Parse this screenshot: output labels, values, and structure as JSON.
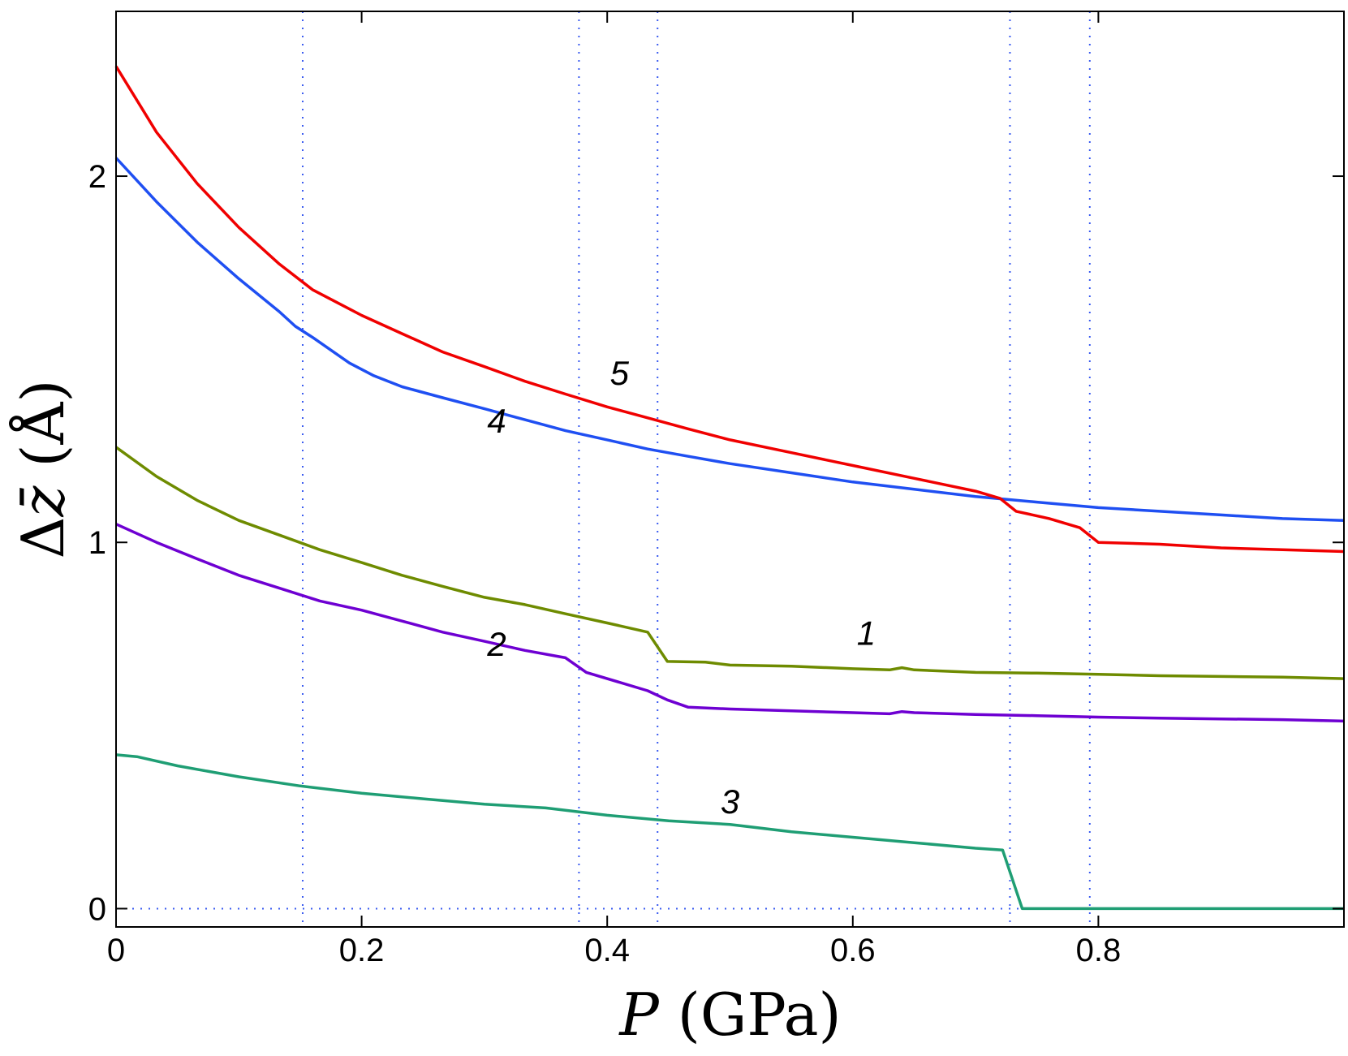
{
  "chart_data": {
    "type": "line",
    "title": "",
    "xlabel": {
      "var": "P",
      "unit": " (GPa)"
    },
    "ylabel": {
      "symbol": "Δ",
      "var": "z̄",
      "unit": " (Å)"
    },
    "xlim": [
      0,
      1.0
    ],
    "ylim": [
      -0.05,
      2.45
    ],
    "xticks": [
      0,
      0.2,
      0.4,
      0.6,
      0.8
    ],
    "xtick_labels": [
      "0",
      "0.2",
      "0.4",
      "0.6",
      "0.8"
    ],
    "yticks": [
      0,
      1,
      2
    ],
    "ytick_labels": [
      "0",
      "1",
      "2"
    ],
    "vlines": [
      0.152,
      0.377,
      0.441,
      0.728,
      0.793
    ],
    "hline": 0,
    "grid": false,
    "series": [
      {
        "name": "1",
        "label_at": [
          0.611,
          0.72
        ],
        "color": "#6e8b00",
        "x": [
          0,
          0.033,
          0.066,
          0.1,
          0.133,
          0.166,
          0.2,
          0.233,
          0.266,
          0.3,
          0.333,
          0.366,
          0.4,
          0.433,
          0.449,
          0.48,
          0.5,
          0.55,
          0.6,
          0.63,
          0.64,
          0.65,
          0.7,
          0.75,
          0.8,
          0.85,
          0.9,
          0.95,
          1.0
        ],
        "y": [
          1.26,
          1.18,
          1.115,
          1.06,
          1.02,
          0.98,
          0.945,
          0.91,
          0.88,
          0.85,
          0.83,
          0.805,
          0.78,
          0.755,
          0.675,
          0.673,
          0.665,
          0.662,
          0.655,
          0.652,
          0.658,
          0.652,
          0.645,
          0.643,
          0.64,
          0.636,
          0.634,
          0.632,
          0.628
        ]
      },
      {
        "name": "2",
        "label_at": [
          0.31,
          0.69
        ],
        "color": "#6e00d2",
        "x": [
          0,
          0.033,
          0.066,
          0.1,
          0.133,
          0.166,
          0.2,
          0.233,
          0.266,
          0.3,
          0.333,
          0.366,
          0.383,
          0.433,
          0.449,
          0.466,
          0.5,
          0.55,
          0.6,
          0.63,
          0.64,
          0.65,
          0.7,
          0.75,
          0.8,
          0.85,
          0.9,
          0.95,
          1.0
        ],
        "y": [
          1.05,
          1.0,
          0.955,
          0.91,
          0.875,
          0.84,
          0.815,
          0.785,
          0.755,
          0.73,
          0.705,
          0.685,
          0.645,
          0.595,
          0.57,
          0.55,
          0.545,
          0.54,
          0.535,
          0.532,
          0.538,
          0.535,
          0.53,
          0.527,
          0.523,
          0.52,
          0.518,
          0.516,
          0.512
        ]
      },
      {
        "name": "3",
        "label_at": [
          0.5,
          0.26
        ],
        "color": "#1f9e74",
        "x": [
          0,
          0.017,
          0.05,
          0.1,
          0.15,
          0.2,
          0.25,
          0.3,
          0.35,
          0.4,
          0.45,
          0.5,
          0.55,
          0.6,
          0.65,
          0.7,
          0.722,
          0.738,
          0.76,
          0.8,
          0.85,
          0.9,
          0.95,
          1.0
        ],
        "y": [
          0.42,
          0.415,
          0.39,
          0.36,
          0.335,
          0.315,
          0.3,
          0.285,
          0.275,
          0.255,
          0.24,
          0.23,
          0.21,
          0.195,
          0.18,
          0.165,
          0.16,
          0.0,
          0.0,
          0.0,
          0.0,
          0.0,
          0.0,
          0.0
        ]
      },
      {
        "name": "4",
        "label_at": [
          0.31,
          1.3
        ],
        "color": "#1f4ff2",
        "x": [
          0,
          0.033,
          0.066,
          0.1,
          0.133,
          0.146,
          0.16,
          0.19,
          0.21,
          0.233,
          0.266,
          0.3,
          0.333,
          0.366,
          0.4,
          0.433,
          0.466,
          0.5,
          0.55,
          0.6,
          0.65,
          0.7,
          0.75,
          0.8,
          0.85,
          0.9,
          0.95,
          1.0
        ],
        "y": [
          2.05,
          1.93,
          1.82,
          1.72,
          1.63,
          1.59,
          1.56,
          1.49,
          1.455,
          1.425,
          1.395,
          1.365,
          1.335,
          1.305,
          1.28,
          1.255,
          1.235,
          1.215,
          1.19,
          1.165,
          1.145,
          1.125,
          1.11,
          1.095,
          1.085,
          1.075,
          1.065,
          1.06
        ]
      },
      {
        "name": "5",
        "label_at": [
          0.41,
          1.43
        ],
        "color": "#f00000",
        "x": [
          0,
          0.033,
          0.066,
          0.1,
          0.133,
          0.16,
          0.2,
          0.233,
          0.266,
          0.3,
          0.333,
          0.366,
          0.4,
          0.433,
          0.466,
          0.5,
          0.55,
          0.6,
          0.65,
          0.7,
          0.72,
          0.733,
          0.76,
          0.785,
          0.8,
          0.85,
          0.9,
          0.95,
          1.0
        ],
        "y": [
          2.3,
          2.12,
          1.98,
          1.86,
          1.76,
          1.69,
          1.62,
          1.57,
          1.52,
          1.48,
          1.44,
          1.405,
          1.37,
          1.34,
          1.31,
          1.28,
          1.245,
          1.21,
          1.175,
          1.14,
          1.12,
          1.085,
          1.065,
          1.04,
          1.0,
          0.995,
          0.985,
          0.98,
          0.975
        ]
      }
    ]
  }
}
